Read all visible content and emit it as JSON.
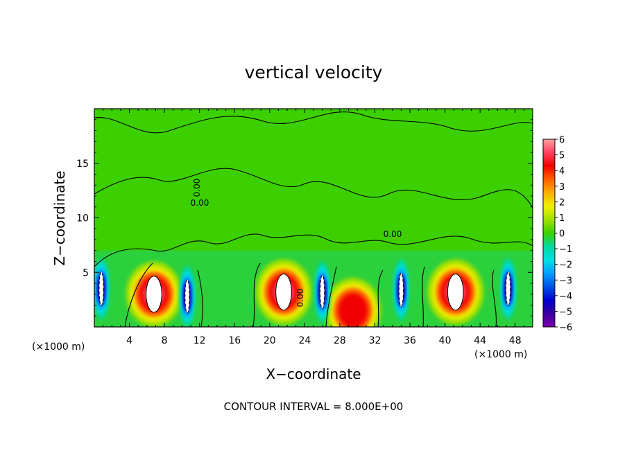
{
  "chart_data": {
    "type": "heatmap",
    "title": "vertical velocity",
    "xlabel": "X−coordinate",
    "ylabel": "Z−coordinate",
    "x_unit_label": "(×1000 m)",
    "x_unit_label_right": "(×1000 m)",
    "xlim": [
      0,
      50
    ],
    "ylim": [
      0,
      20
    ],
    "x_ticks": [
      4,
      8,
      12,
      16,
      20,
      24,
      28,
      32,
      36,
      40,
      44,
      48
    ],
    "y_ticks": [
      5,
      10,
      15
    ],
    "contour_labels": [
      "0.00",
      "0.00",
      "0.00",
      "0.00"
    ],
    "footer": "CONTOUR INTERVAL = 8.000E+00",
    "colorbar": {
      "min": -6,
      "max": 6,
      "ticks": [
        6,
        5,
        4,
        3,
        2,
        1,
        0,
        -1,
        -2,
        -3,
        -4,
        -5,
        -6
      ],
      "tick_labels": [
        "6",
        "5",
        "4",
        "3",
        "2",
        "1",
        "0",
        "−1",
        "−2",
        "−3",
        "−4",
        "−5",
        "−6"
      ],
      "colors": [
        "#7a00a8",
        "#3a00a0",
        "#0000d0",
        "#0050e8",
        "#00a0ff",
        "#00e0e0",
        "#00d8a0",
        "#3cd000",
        "#a0e000",
        "#f0f000",
        "#f8b000",
        "#ff6000",
        "#f00000",
        "#ff4060",
        "#ffa0a0"
      ]
    },
    "features": [
      {
        "kind": "updraft",
        "x": 6.8,
        "z": 3.0,
        "peak": 6
      },
      {
        "kind": "updraft",
        "x": 21.6,
        "z": 3.2,
        "peak": 6
      },
      {
        "kind": "updraft",
        "x": 41.2,
        "z": 3.2,
        "peak": 6
      },
      {
        "kind": "updraft",
        "x": 29.5,
        "z": 1.5,
        "peak": 4
      },
      {
        "kind": "downdraft",
        "x": 0.8,
        "z": 3.5,
        "peak": -6
      },
      {
        "kind": "downdraft",
        "x": 10.6,
        "z": 2.8,
        "peak": -6
      },
      {
        "kind": "downdraft",
        "x": 26.0,
        "z": 3.2,
        "peak": -6
      },
      {
        "kind": "downdraft",
        "x": 35.0,
        "z": 3.4,
        "peak": -6
      },
      {
        "kind": "downdraft",
        "x": 47.2,
        "z": 3.5,
        "peak": -6
      }
    ]
  }
}
